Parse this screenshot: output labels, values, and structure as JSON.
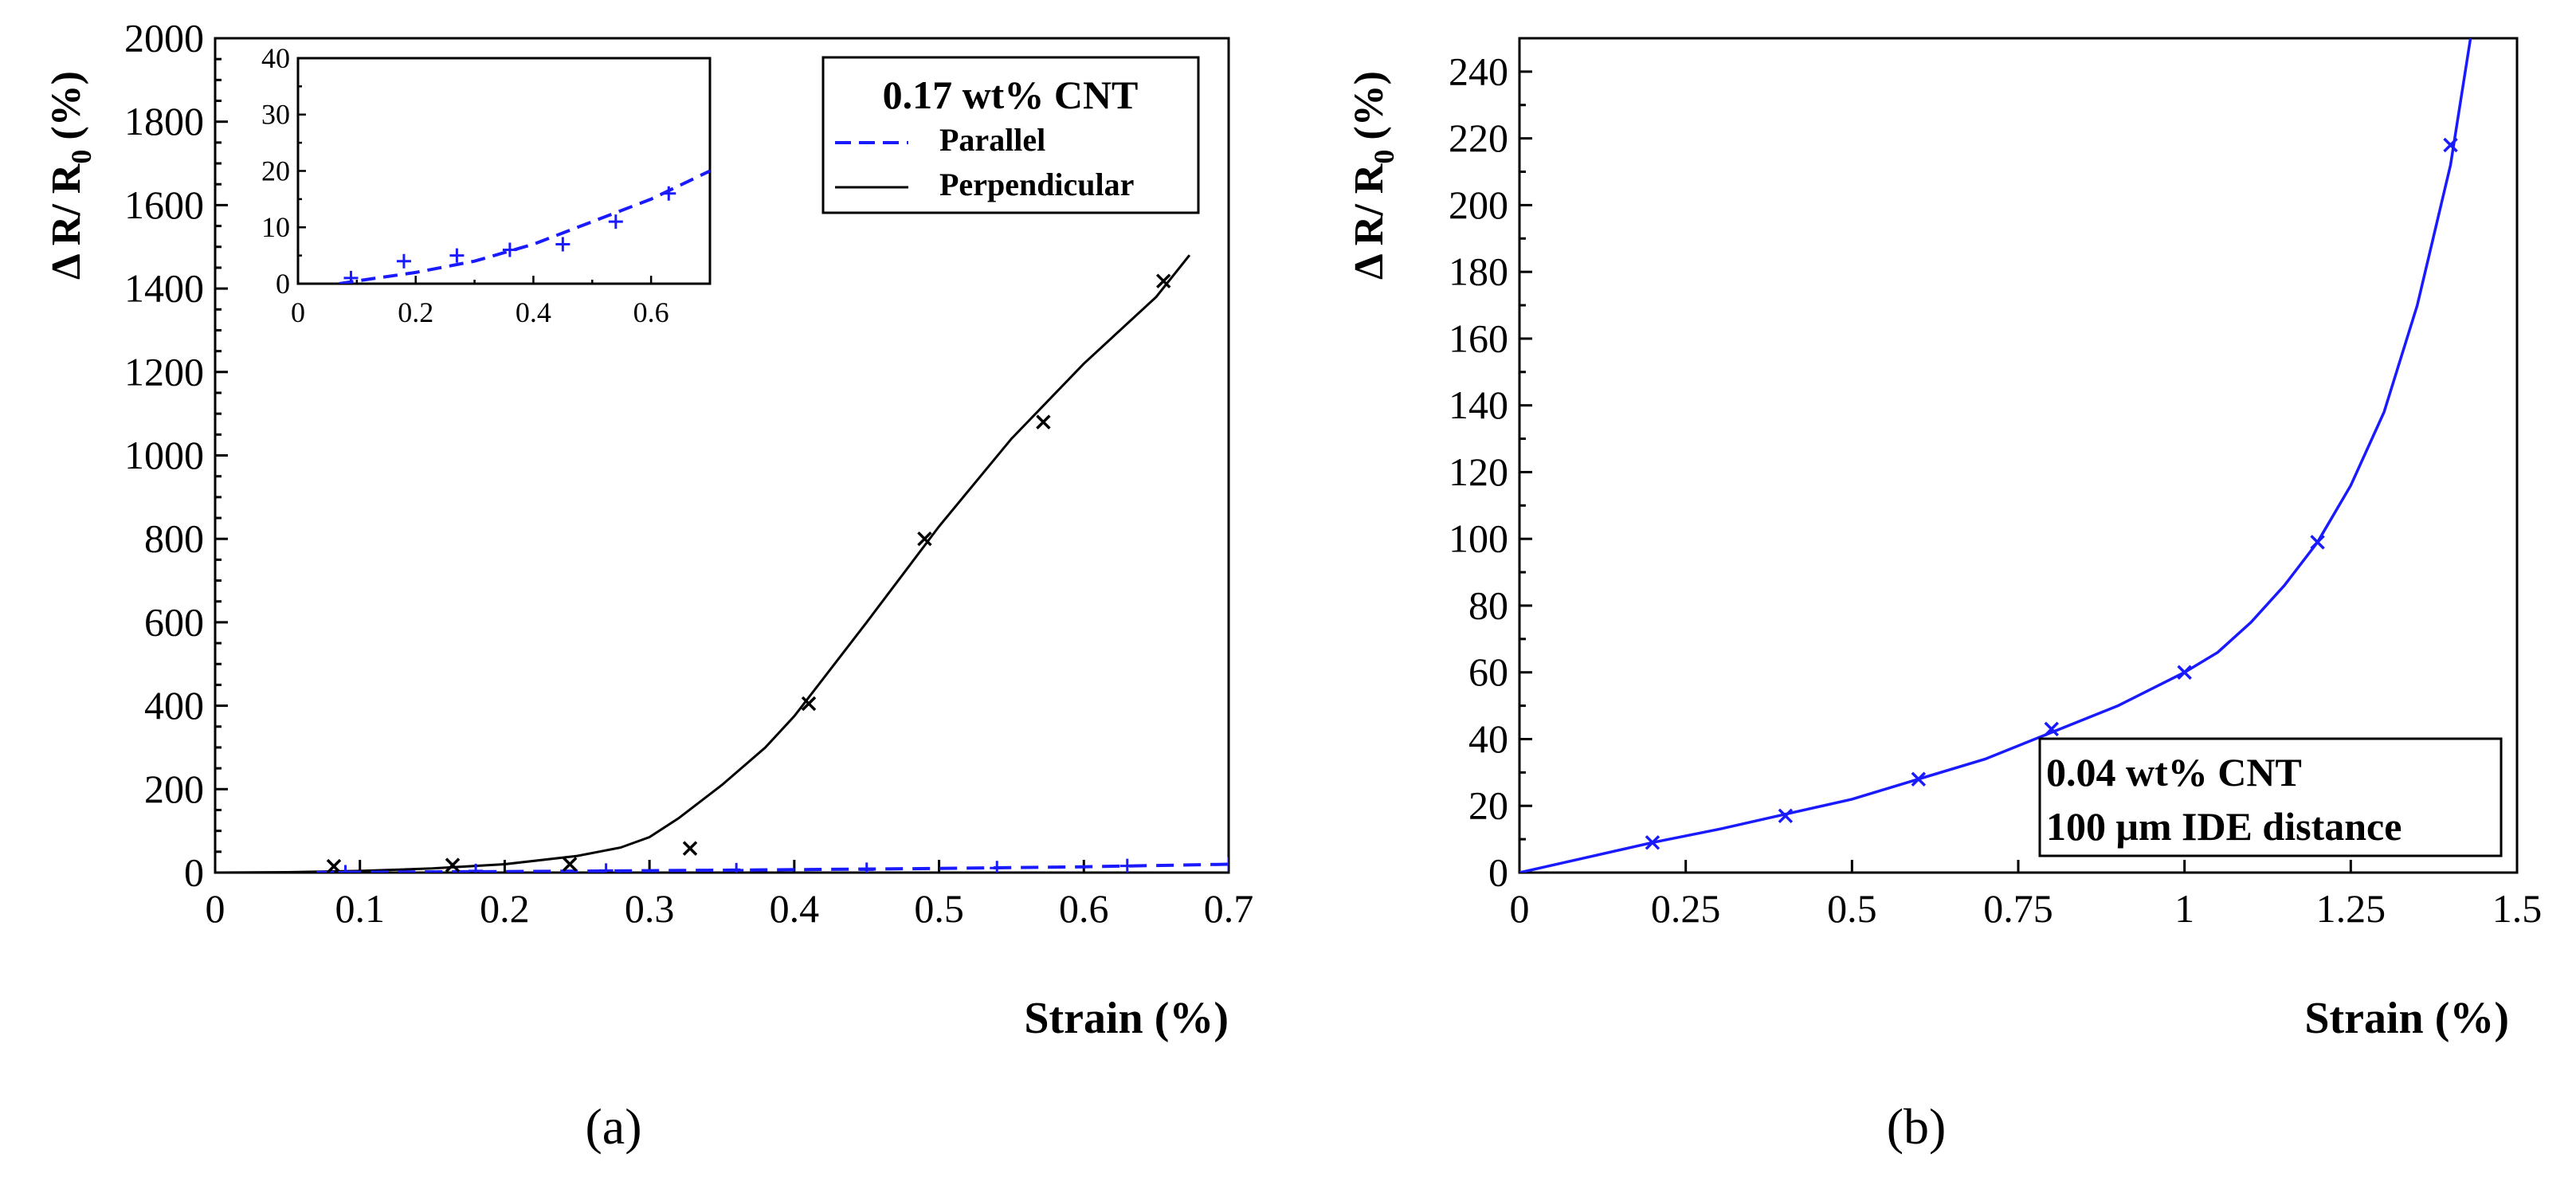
{
  "chart_data": [
    {
      "type": "scatter",
      "panel_label": "(a)",
      "xlabel": "Strain (%)",
      "ylabel_main": "Δ R/ R",
      "ylabel_sub": "0",
      "ylabel_unit": "(%)",
      "xlim": [
        0,
        0.7
      ],
      "ylim": [
        0,
        2000
      ],
      "xticks": [
        0,
        0.1,
        0.2,
        0.3,
        0.4,
        0.5,
        0.6,
        0.7
      ],
      "xtick_labels": [
        "0",
        "0.1",
        "0.2",
        "0.3",
        "0.4",
        "0.5",
        "0.6",
        "0.7"
      ],
      "yticks": [
        0,
        200,
        400,
        600,
        800,
        1000,
        1200,
        1400,
        1600,
        1800,
        2000
      ],
      "ytick_labels": [
        "0",
        "200",
        "400",
        "600",
        "800",
        "1000",
        "1200",
        "1400",
        "1600",
        "1800",
        "2000"
      ],
      "legend": {
        "title": "0.17 wt% CNT",
        "position": "top-right",
        "entries": [
          {
            "label": "Parallel",
            "color": "#1a1aff",
            "style": "dashed"
          },
          {
            "label": "Perpendicular",
            "color": "#000000",
            "style": "solid"
          }
        ]
      },
      "series": [
        {
          "name": "Perpendicular",
          "color": "#000000",
          "marker": "x",
          "points": [
            [
              0.082,
              15
            ],
            [
              0.164,
              18
            ],
            [
              0.245,
              20
            ],
            [
              0.328,
              58
            ],
            [
              0.41,
              405
            ],
            [
              0.49,
              800
            ],
            [
              0.572,
              1080
            ],
            [
              0.655,
              1418
            ]
          ],
          "fit": [
            [
              0,
              0
            ],
            [
              0.05,
              1
            ],
            [
              0.1,
              4
            ],
            [
              0.15,
              10
            ],
            [
              0.2,
              20
            ],
            [
              0.25,
              40
            ],
            [
              0.28,
              60
            ],
            [
              0.3,
              85
            ],
            [
              0.32,
              130
            ],
            [
              0.35,
              210
            ],
            [
              0.38,
              300
            ],
            [
              0.4,
              375
            ],
            [
              0.45,
              600
            ],
            [
              0.5,
              830
            ],
            [
              0.55,
              1040
            ],
            [
              0.6,
              1220
            ],
            [
              0.65,
              1380
            ],
            [
              0.673,
              1480
            ]
          ]
        },
        {
          "name": "Parallel",
          "color": "#1a1aff",
          "marker": "+",
          "points": [
            [
              0.09,
              1
            ],
            [
              0.18,
              4
            ],
            [
              0.27,
              5
            ],
            [
              0.36,
              6
            ],
            [
              0.45,
              7
            ],
            [
              0.54,
              11
            ],
            [
              0.63,
              16
            ],
            [
              0.7,
              20
            ]
          ],
          "fit": [
            [
              0.07,
              0.5
            ],
            [
              0.1,
              1
            ],
            [
              0.2,
              2.5
            ],
            [
              0.3,
              4.5
            ],
            [
              0.4,
              7
            ],
            [
              0.5,
              10
            ],
            [
              0.6,
              14
            ],
            [
              0.7,
              20
            ]
          ]
        }
      ],
      "inset": {
        "xlim": [
          0,
          0.7
        ],
        "ylim": [
          0,
          40
        ],
        "xticks": [
          0,
          0.2,
          0.4,
          0.6
        ],
        "xtick_labels": [
          "0",
          "0.2",
          "0.4",
          "0.6"
        ],
        "yticks": [
          0,
          10,
          20,
          30,
          40
        ],
        "ytick_labels": [
          "0",
          "10",
          "20",
          "30",
          "40"
        ],
        "series": {
          "name": "Parallel",
          "color": "#1a1aff",
          "marker": "+",
          "points": [
            [
              0.09,
              1
            ],
            [
              0.18,
              4
            ],
            [
              0.27,
              5
            ],
            [
              0.36,
              6
            ],
            [
              0.45,
              7
            ],
            [
              0.54,
              11
            ],
            [
              0.63,
              16
            ]
          ],
          "fit": [
            [
              0.07,
              0
            ],
            [
              0.1,
              0.5
            ],
            [
              0.2,
              2
            ],
            [
              0.3,
              4
            ],
            [
              0.4,
              7
            ],
            [
              0.5,
              11
            ],
            [
              0.6,
              15
            ],
            [
              0.7,
              20
            ]
          ]
        }
      }
    },
    {
      "type": "scatter",
      "panel_label": "(b)",
      "xlabel": "Strain (%)",
      "ylabel_main": "Δ R/ R",
      "ylabel_sub": "0",
      "ylabel_unit": "(%)",
      "xlim": [
        0,
        1.5
      ],
      "ylim": [
        0,
        250
      ],
      "xticks": [
        0,
        0.25,
        0.5,
        0.75,
        1,
        1.25,
        1.5
      ],
      "xtick_labels": [
        "0",
        "0.25",
        "0.5",
        "0.75",
        "1",
        "1.25",
        "1.5"
      ],
      "yticks": [
        0,
        20,
        40,
        60,
        80,
        100,
        120,
        140,
        160,
        180,
        200,
        220,
        240
      ],
      "ytick_labels": [
        "0",
        "20",
        "40",
        "60",
        "80",
        "100",
        "120",
        "140",
        "160",
        "180",
        "200",
        "220",
        "240"
      ],
      "annotation": {
        "lines": [
          "0.04 wt% CNT",
          " 100 μm IDE distance"
        ],
        "position": "bottom-right"
      },
      "series": [
        {
          "name": "0.04 wt% CNT",
          "color": "#1a1aff",
          "marker": "x",
          "points": [
            [
              0.2,
              9
            ],
            [
              0.4,
              17
            ],
            [
              0.6,
              28
            ],
            [
              0.8,
              43
            ],
            [
              1.0,
              60
            ],
            [
              1.2,
              99
            ],
            [
              1.4,
              218
            ]
          ],
          "fit": [
            [
              0,
              0
            ],
            [
              0.1,
              4.5
            ],
            [
              0.2,
              9
            ],
            [
              0.3,
              13
            ],
            [
              0.4,
              17.5
            ],
            [
              0.5,
              22
            ],
            [
              0.6,
              28
            ],
            [
              0.7,
              34
            ],
            [
              0.8,
              42
            ],
            [
              0.9,
              50
            ],
            [
              1.0,
              60
            ],
            [
              1.05,
              66
            ],
            [
              1.1,
              75
            ],
            [
              1.15,
              86
            ],
            [
              1.2,
              99
            ],
            [
              1.25,
              116
            ],
            [
              1.3,
              138
            ],
            [
              1.35,
              170
            ],
            [
              1.4,
              212
            ],
            [
              1.43,
              250
            ]
          ]
        }
      ]
    }
  ]
}
